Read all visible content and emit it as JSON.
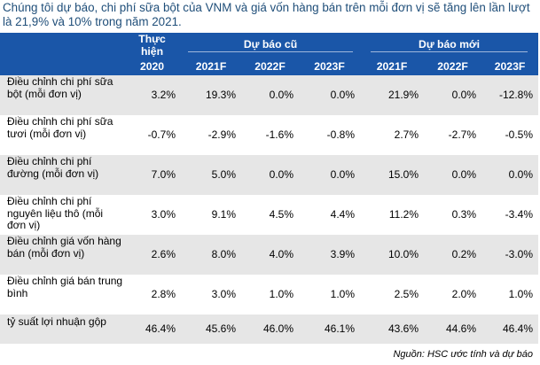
{
  "caption": "Chúng tôi dự báo, chi phí sữa bột của VNM và giá vốn hàng bán trên mỗi đơn vị sẽ tăng lên lần lượt là 21,9% và 10% trong năm 2021.",
  "header": {
    "actual_line1": "Thực",
    "actual_line2": "hiện",
    "actual_year": "2020",
    "old_forecast": "Dự báo cũ",
    "new_forecast": "Dự báo mới",
    "old_years": [
      "2021F",
      "2022F",
      "2023F"
    ],
    "new_years": [
      "2021F",
      "2022F",
      "2023F"
    ]
  },
  "rows": [
    {
      "label": "Điều chỉnh chi phí sữa bột (mỗi đơn vị)",
      "values": [
        "3.2%",
        "19.3%",
        "0.0%",
        "0.0%",
        "21.9%",
        "0.0%",
        "-12.8%"
      ]
    },
    {
      "label": "Điều chỉnh chi phí sữa tươi (mỗi đơn vị)",
      "values": [
        "-0.7%",
        "-2.9%",
        "-1.6%",
        "-0.8%",
        "2.7%",
        "-2.7%",
        "-0.5%"
      ]
    },
    {
      "label": "Điều chỉnh chi phí đường (mỗi đơn vị)",
      "values": [
        "7.0%",
        "5.0%",
        "0.0%",
        "0.0%",
        "15.0%",
        "0.0%",
        "0.0%"
      ]
    },
    {
      "label": "Điều chỉnh chi phí nguyên liệu thô (mỗi đơn vị)",
      "values": [
        "3.0%",
        "9.1%",
        "4.5%",
        "4.4%",
        "11.2%",
        "0.3%",
        "-3.4%"
      ]
    },
    {
      "label": "Điều chỉnh giá vốn hàng bán (mỗi đơn vị)",
      "values": [
        "2.6%",
        "8.0%",
        "4.0%",
        "3.9%",
        "10.0%",
        "0.2%",
        "-3.0%"
      ]
    },
    {
      "label": "Điều chỉnh giá bán trung bình",
      "values": [
        "2.8%",
        "3.0%",
        "1.0%",
        "1.0%",
        "2.5%",
        "2.0%",
        "1.0%"
      ]
    },
    {
      "label": "tỷ suất lợi nhuận gộp",
      "values": [
        "46.4%",
        "45.6%",
        "46.0%",
        "46.1%",
        "43.6%",
        "44.6%",
        "46.4%"
      ]
    }
  ],
  "source": "Nguồn: HSC ước tính và dự báo",
  "colors": {
    "header_bg": "#1a56a8",
    "caption": "#1f4e79",
    "stripe": "#e6e6e6"
  }
}
